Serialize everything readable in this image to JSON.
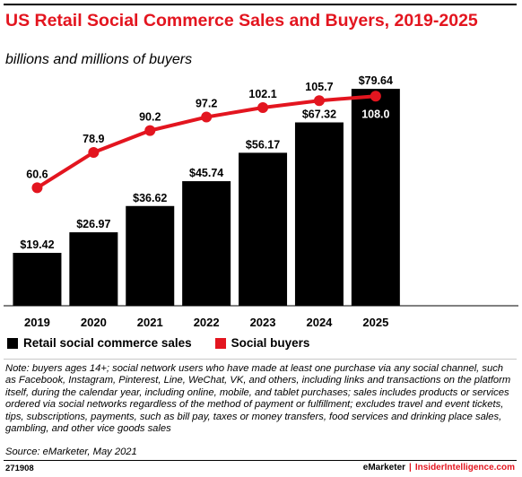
{
  "header": {
    "title": "US Retail Social Commerce Sales and Buyers, 2019-2025",
    "subtitle": "billions and millions of buyers"
  },
  "chart_data": {
    "type": "bar",
    "categories": [
      "2019",
      "2020",
      "2021",
      "2022",
      "2023",
      "2024",
      "2025"
    ],
    "series": [
      {
        "name": "Retail social commerce sales",
        "type": "bar",
        "values": [
          19.42,
          26.97,
          36.62,
          45.74,
          56.17,
          67.32,
          79.64
        ],
        "labels": [
          "$19.42",
          "$26.97",
          "$36.62",
          "$45.74",
          "$56.17",
          "$67.32",
          "$79.64"
        ],
        "color": "#000000"
      },
      {
        "name": "Social buyers",
        "type": "line",
        "values": [
          60.6,
          78.9,
          90.2,
          97.2,
          102.1,
          105.7,
          108.0
        ],
        "labels": [
          "60.6",
          "78.9",
          "90.2",
          "97.2",
          "102.1",
          "105.7",
          "108.0"
        ],
        "color": "#e3151f"
      }
    ],
    "grid": false
  },
  "legend": {
    "bars_label": "Retail social commerce sales",
    "line_label": "Social buyers"
  },
  "note": "Note: buyers ages 14+; social network users who have made at least one purchase via any social channel, such as Facebook, Instagram, Pinterest, Line, WeChat, VK, and others, including links and transactions on the platform itself, during the calendar year, including online, mobile, and tablet purchases; sales includes products or services ordered via social networks regardless of the method of payment or fulfillment; excludes travel and event tickets, tips, subscriptions, payments, such as bill pay, taxes or money transfers, food services and drinking place sales, gambling, and other vice goods sales",
  "source": "Source: eMarketer, May 2021",
  "footer": {
    "chart_id": "271908",
    "brand": "eMarketer",
    "separator": "|",
    "site": "InsiderIntelligence.com"
  }
}
